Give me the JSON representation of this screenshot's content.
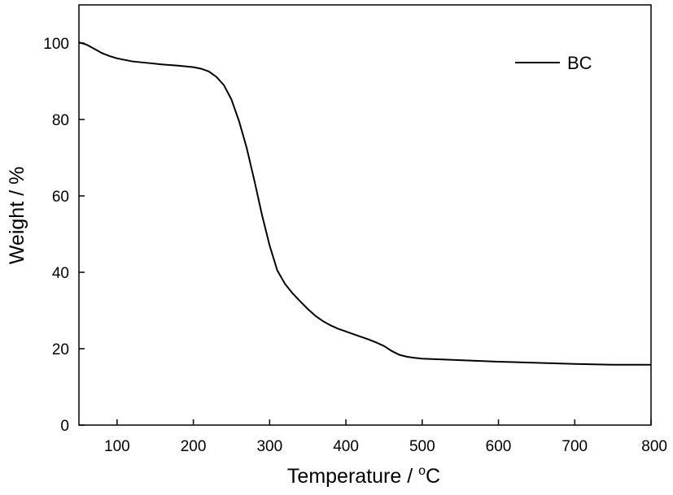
{
  "chart_data": {
    "type": "line",
    "title": "",
    "xlabel": "Temperature / ",
    "xlabel_unit_sup": "o",
    "xlabel_unit": "C",
    "ylabel": "Weight / %",
    "xlim": [
      50,
      800
    ],
    "ylim": [
      0,
      110
    ],
    "xticks": [
      100,
      200,
      300,
      400,
      500,
      600,
      700,
      800
    ],
    "yticks": [
      0,
      20,
      40,
      60,
      80,
      100
    ],
    "grid": false,
    "legend_position": "top-right",
    "series": [
      {
        "name": "BC",
        "color": "#000000",
        "x": [
          50,
          60,
          70,
          80,
          90,
          100,
          120,
          140,
          160,
          180,
          200,
          210,
          220,
          230,
          240,
          250,
          260,
          270,
          280,
          290,
          300,
          310,
          320,
          330,
          340,
          350,
          360,
          370,
          380,
          390,
          400,
          410,
          420,
          430,
          440,
          450,
          460,
          470,
          480,
          490,
          500,
          550,
          600,
          650,
          700,
          750,
          800
        ],
        "y": [
          100.2,
          99.6,
          98.5,
          97.4,
          96.6,
          96.0,
          95.2,
          94.8,
          94.4,
          94.1,
          93.7,
          93.3,
          92.6,
          91.2,
          89.0,
          85.2,
          79.5,
          72.5,
          64.0,
          55.0,
          47.0,
          40.5,
          37.0,
          34.5,
          32.4,
          30.4,
          28.6,
          27.2,
          26.1,
          25.2,
          24.5,
          23.8,
          23.1,
          22.4,
          21.6,
          20.7,
          19.4,
          18.4,
          17.9,
          17.6,
          17.4,
          17.0,
          16.6,
          16.3,
          16.0,
          15.8,
          15.8
        ]
      }
    ]
  }
}
